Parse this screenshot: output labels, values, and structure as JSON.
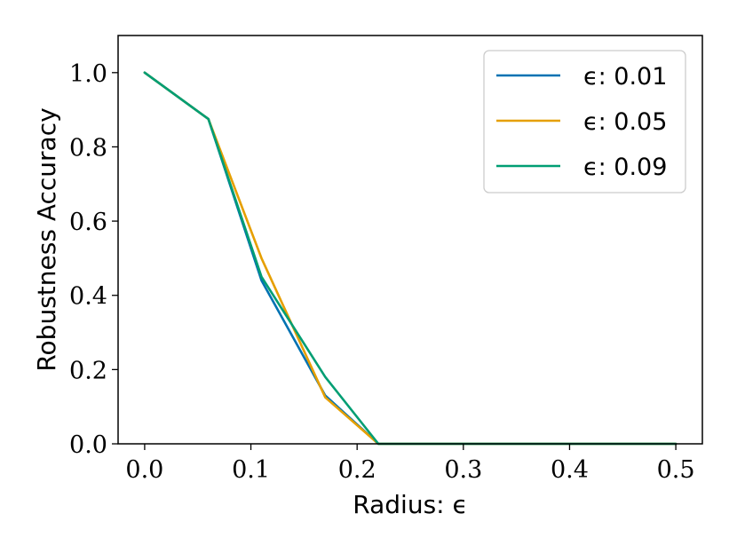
{
  "chart_data": {
    "type": "line",
    "title": "",
    "xlabel": "Radius: ϵ",
    "ylabel": "Robustness Accuracy",
    "xlim": [
      -0.025,
      0.525
    ],
    "ylim": [
      0.0,
      1.1
    ],
    "x_ticks": [
      0.0,
      0.1,
      0.2,
      0.3,
      0.4,
      0.5
    ],
    "x_tick_labels": [
      "0.0",
      "0.1",
      "0.2",
      "0.3",
      "0.4",
      "0.5"
    ],
    "y_ticks": [
      0.0,
      0.2,
      0.4,
      0.6,
      0.8,
      1.0
    ],
    "y_tick_labels": [
      "0.0",
      "0.2",
      "0.4",
      "0.6",
      "0.8",
      "1.0"
    ],
    "grid": false,
    "legend_position": "top-right",
    "series": [
      {
        "name": "ϵ: 0.01",
        "color": "#0072b2",
        "x": [
          0.0,
          0.06,
          0.11,
          0.17,
          0.22,
          0.3,
          0.4,
          0.5
        ],
        "y": [
          1.0,
          0.875,
          0.44,
          0.13,
          0.0,
          0.0,
          0.0,
          0.0
        ]
      },
      {
        "name": "ϵ: 0.05",
        "color": "#e69f00",
        "x": [
          0.0,
          0.06,
          0.11,
          0.17,
          0.22,
          0.3,
          0.4,
          0.5
        ],
        "y": [
          1.0,
          0.875,
          0.5,
          0.125,
          0.0,
          0.0,
          0.0,
          0.0
        ]
      },
      {
        "name": "ϵ: 0.09",
        "color": "#009e73",
        "x": [
          0.0,
          0.06,
          0.11,
          0.17,
          0.22,
          0.3,
          0.4,
          0.5
        ],
        "y": [
          1.0,
          0.875,
          0.45,
          0.18,
          0.0,
          0.0,
          0.0,
          0.0
        ]
      }
    ]
  }
}
